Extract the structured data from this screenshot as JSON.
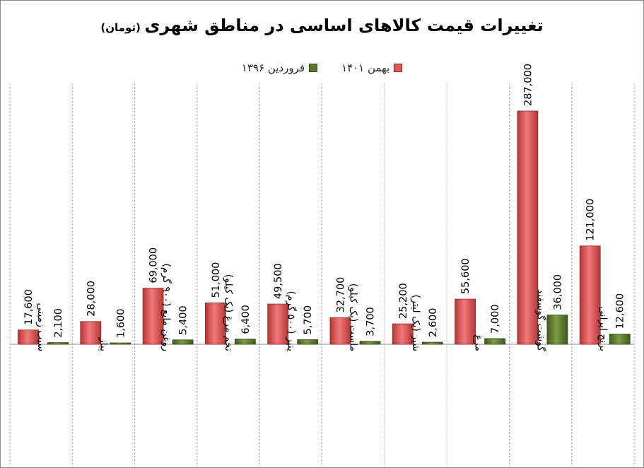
{
  "chart_data": {
    "type": "bar",
    "title": "تغییرات قیمت کالاهای اساسی در مناطق شهری",
    "subtitle": "(تومان)",
    "categories": [
      "سیب زمینی",
      "پیاز",
      "روغن مایع (۹۰۰ گرم)",
      "تخم مرغ (یک کیلو)",
      "پنیر (۵۰۰ گرم)",
      "ماست (یک کیلو)",
      "شیر (یک لیتر)",
      "مرغ",
      "گوشت گوسفند",
      "برنج ایرانی"
    ],
    "series": [
      {
        "name": "بهمن ۱۴۰۱",
        "color": "#e05a5a",
        "values": [
          17600,
          28000,
          69000,
          51000,
          49500,
          32700,
          25200,
          55600,
          287000,
          121000
        ],
        "labels": [
          "17,600",
          "28,000",
          "69,000",
          "51,000",
          "49,500",
          "32,700",
          "25,200",
          "55,600",
          "287,000",
          "121,000"
        ]
      },
      {
        "name": "فروردین ۱۳۹۶",
        "color": "#5e7a2e",
        "values": [
          2100,
          1600,
          5400,
          6400,
          5700,
          3700,
          2600,
          7000,
          36000,
          12600
        ],
        "labels": [
          "2,100",
          "1,600",
          "5,400",
          "6,400",
          "5,700",
          "3,700",
          "2,600",
          "7,000",
          "36,000",
          "12,600"
        ]
      }
    ],
    "ylim": [
      0,
      300000
    ],
    "grid": false,
    "legend": "top-center"
  }
}
